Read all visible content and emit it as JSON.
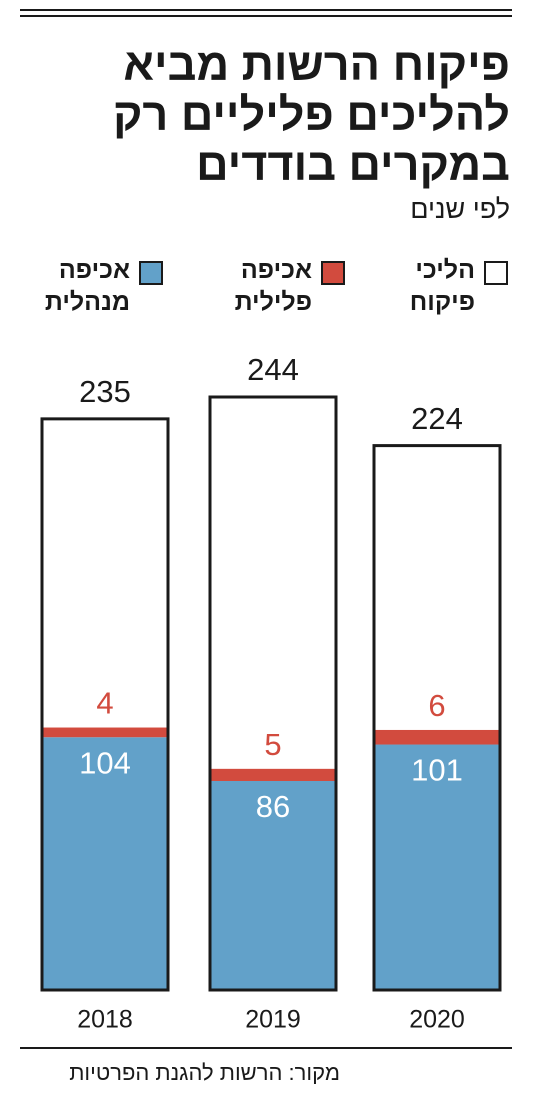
{
  "chart_data": {
    "type": "bar",
    "title": "פיקוח הרשות מביא להליכים פליליים רק במקרים בודדים",
    "subtitle": "לפי שנים",
    "source": "מקור: הרשות להגנת הפרטיות",
    "categories": [
      "2018",
      "2019",
      "2020"
    ],
    "series": [
      {
        "name": "הליכי פיקוח",
        "color": "#ffffff",
        "values": [
          235,
          244,
          224
        ]
      },
      {
        "name": "אכיפה פלילית",
        "color": "#d24b3e",
        "values": [
          4,
          5,
          6
        ]
      },
      {
        "name": "אכיפה מנהלית",
        "color": "#62a1c9",
        "values": [
          104,
          86,
          101
        ]
      }
    ]
  }
}
